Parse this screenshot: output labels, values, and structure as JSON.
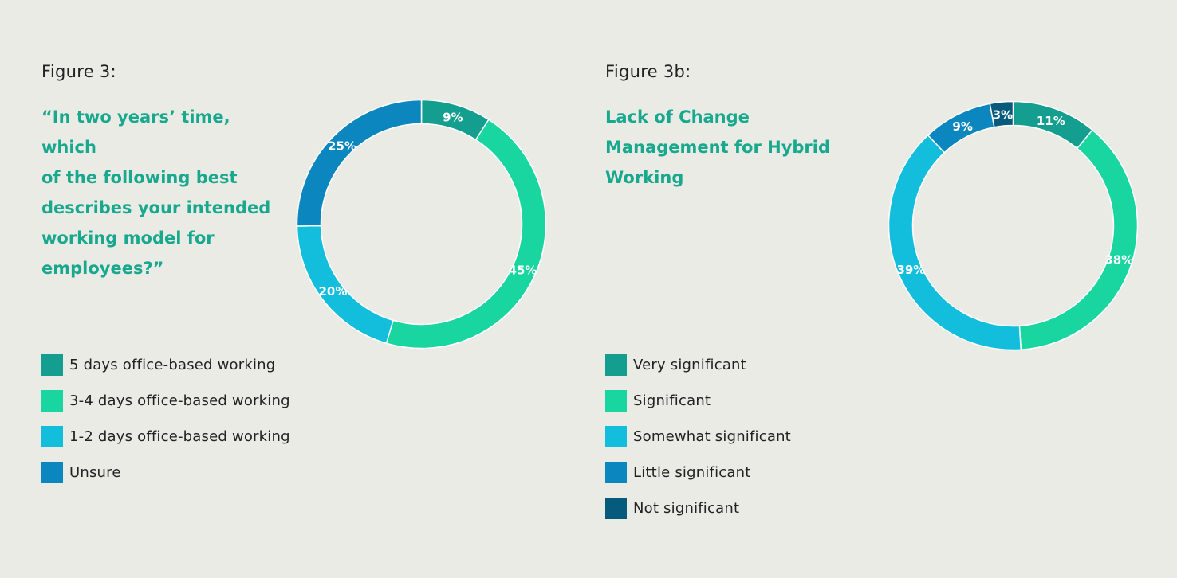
{
  "chart_data": [
    {
      "type": "pie",
      "figure_label": "Figure 3:",
      "title": "“In two years’ time, which of the following best describes your intended working model for employees?”",
      "categories": [
        "5 days office-based working",
        "3-4 days office-based working",
        "1-2 days office-based working",
        "Unsure"
      ],
      "values": [
        9,
        45,
        20,
        25
      ],
      "value_labels": [
        "9%",
        "45%",
        "20%",
        "25%"
      ],
      "colors": [
        "#139e8f",
        "#19d6a0",
        "#13bedd",
        "#0b86be"
      ],
      "legend_position": "bottom-left",
      "donut": true
    },
    {
      "type": "pie",
      "figure_label": "Figure 3b:",
      "title": "Lack of Change Management for Hybrid Working",
      "categories": [
        "Very significant",
        "Significant",
        "Somewhat significant",
        "Little significant",
        "Not significant"
      ],
      "values": [
        11,
        38,
        39,
        9,
        3
      ],
      "value_labels": [
        "11%",
        "38%",
        "39%",
        "9%",
        "3%"
      ],
      "colors": [
        "#139e8f",
        "#19d6a0",
        "#13bedd",
        "#0b86be",
        "#065a7c"
      ],
      "legend_position": "bottom-left",
      "donut": true
    }
  ]
}
